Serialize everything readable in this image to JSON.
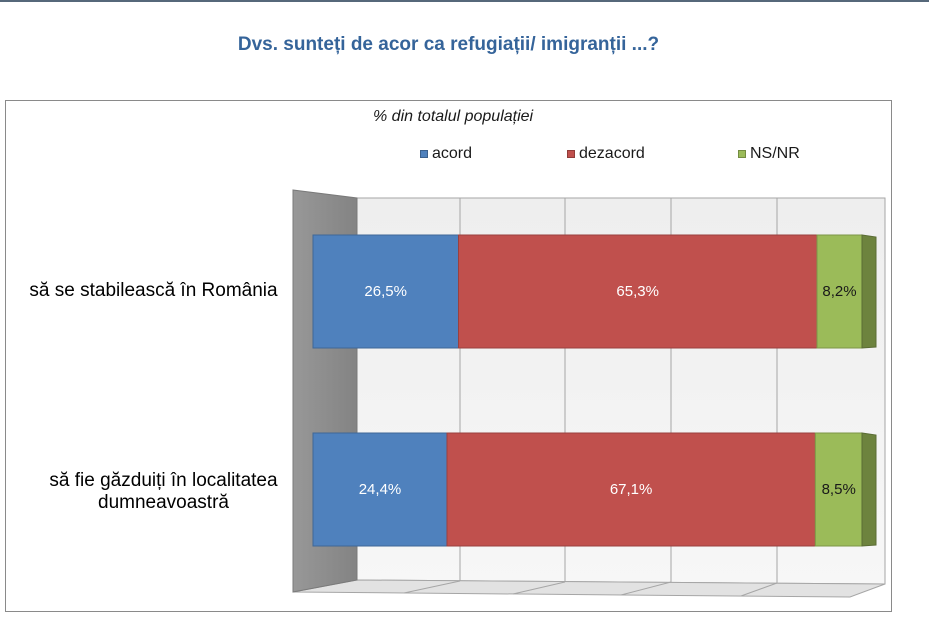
{
  "chart_data": {
    "type": "bar",
    "orientation": "horizontal",
    "stacked": true,
    "title": "Dvs. sunteți de acor ca refugiații/ imigranții ...?",
    "subtitle": "% din totalul populației",
    "categories": [
      "să se stabilească în România",
      "să fie găzduiți în localitatea dumneavoastră"
    ],
    "series": [
      {
        "name": "acord",
        "color": "#4f81bd",
        "label_color": "#ffffff",
        "values": [
          26.5,
          24.4
        ],
        "labels": [
          "26,5%",
          "24,4%"
        ]
      },
      {
        "name": "dezacord",
        "color": "#c0504d",
        "label_color": "#ffffff",
        "values": [
          65.3,
          67.1
        ],
        "labels": [
          "65,3%",
          "67,1%"
        ]
      },
      {
        "name": "NS/NR",
        "color": "#9bbb59",
        "label_color": "#1a1a1a",
        "values": [
          8.2,
          8.5
        ],
        "labels": [
          "8,2%",
          "8,5%"
        ]
      }
    ],
    "xlabel": "",
    "ylabel": "",
    "xlim": [
      0,
      100
    ],
    "grid": true,
    "legend": "top"
  }
}
